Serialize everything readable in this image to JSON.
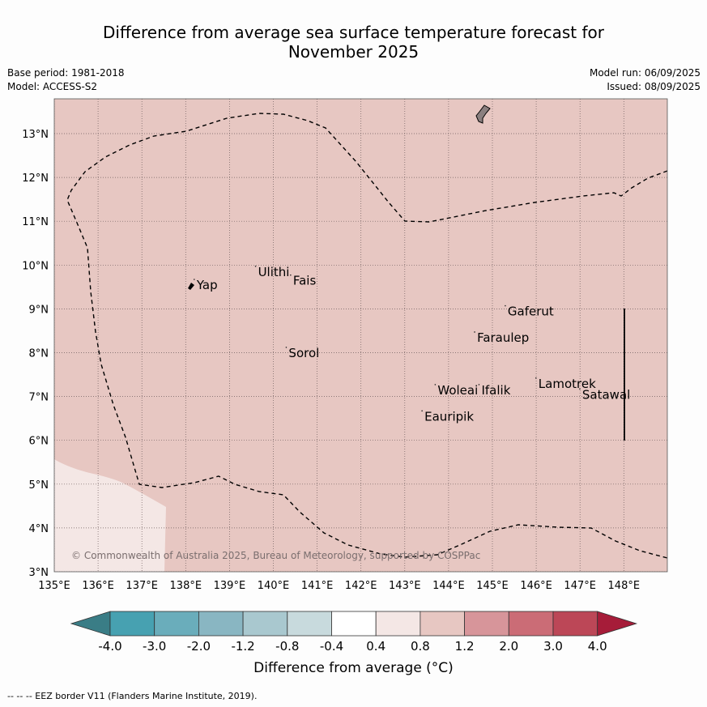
{
  "title": {
    "line1": "Difference from average sea surface temperature forecast for",
    "line2": "November 2025"
  },
  "meta": {
    "base_period": "Base period: 1981-2018",
    "model": "Model: ACCESS-S2",
    "model_run": "Model run: 06/09/2025",
    "issued": "Issued: 08/09/2025"
  },
  "map": {
    "lon_range": [
      135,
      149
    ],
    "lat_range": [
      3,
      13.8
    ],
    "lon_ticks": [
      "135°E",
      "136°E",
      "137°E",
      "138°E",
      "139°E",
      "140°E",
      "141°E",
      "142°E",
      "143°E",
      "144°E",
      "145°E",
      "146°E",
      "147°E",
      "148°E"
    ],
    "lat_ticks": [
      "3°N",
      "4°N",
      "5°N",
      "6°N",
      "7°N",
      "8°N",
      "9°N",
      "10°N",
      "11°N",
      "12°N",
      "13°N"
    ],
    "background_color": "#e7c7c2",
    "cooler_region_color": "#f4e7e5",
    "copyright": "© Commonwealth of Australia 2025, Bureau of Meteorology, supported by COSPPac",
    "islands": [
      {
        "name": "Yap",
        "lon": 138.25,
        "lat": 9.45
      },
      {
        "name": "Ulithi",
        "lon": 139.65,
        "lat": 9.75
      },
      {
        "name": "Fais",
        "lon": 140.45,
        "lat": 9.55
      },
      {
        "name": "Gaferut",
        "lon": 145.35,
        "lat": 8.85
      },
      {
        "name": "Faraulep",
        "lon": 144.65,
        "lat": 8.25
      },
      {
        "name": "Sorol",
        "lon": 140.35,
        "lat": 7.9
      },
      {
        "name": "Woleai",
        "lon": 143.75,
        "lat": 7.05
      },
      {
        "name": "Ifalik",
        "lon": 144.75,
        "lat": 7.05
      },
      {
        "name": "Lamotrek",
        "lon": 146.05,
        "lat": 7.2
      },
      {
        "name": "Satawal",
        "lon": 147.05,
        "lat": 6.95
      },
      {
        "name": "Eauripik",
        "lon": 143.45,
        "lat": 6.45
      }
    ]
  },
  "colorbar": {
    "title": "Difference from average (°C)",
    "labels": [
      "-4.0",
      "-3.0",
      "-2.0",
      "-1.2",
      "-0.8",
      "-0.4",
      "0.4",
      "0.8",
      "1.2",
      "2.0",
      "3.0",
      "4.0"
    ],
    "colors": [
      "#3a7d86",
      "#47a1b1",
      "#6aadbb",
      "#89b6c2",
      "#a9c8cf",
      "#c8dadd",
      "#ffffff",
      "#f4e7e5",
      "#e7c7c2",
      "#d7959a",
      "#cb6c76",
      "#bc4757",
      "#a61c39"
    ]
  },
  "footer": "-- -- -- EEZ border V11 (Flanders Marine Institute, 2019)."
}
